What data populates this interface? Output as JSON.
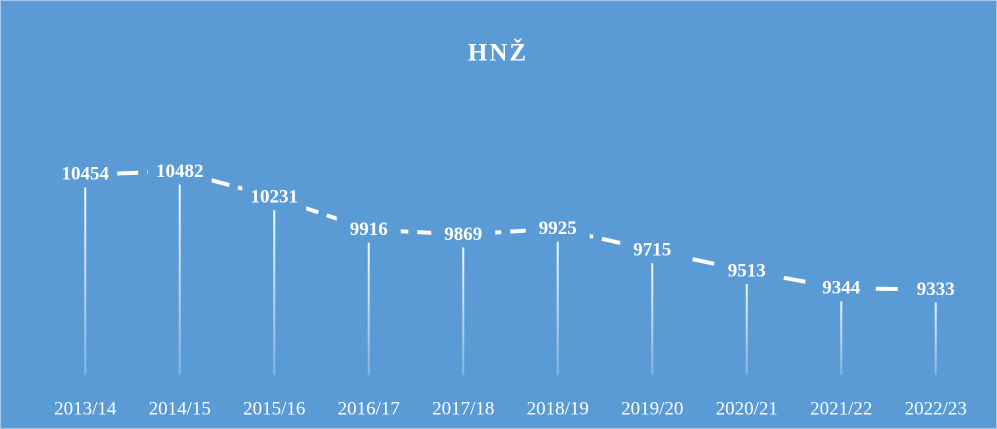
{
  "chart_data": {
    "type": "line",
    "title": "HNŽ",
    "categories": [
      "2013/14",
      "2014/15",
      "2015/16",
      "2016/17",
      "2017/18",
      "2018/19",
      "2019/20",
      "2020/21",
      "2021/22",
      "2022/23"
    ],
    "values": [
      10454,
      10482,
      10231,
      9916,
      9869,
      9925,
      9715,
      9513,
      9344,
      9333
    ],
    "color": "#ffffff",
    "background": "#5b9bd5",
    "drop_lines": true,
    "data_labels": true,
    "ylim": [
      8500,
      11500
    ]
  }
}
